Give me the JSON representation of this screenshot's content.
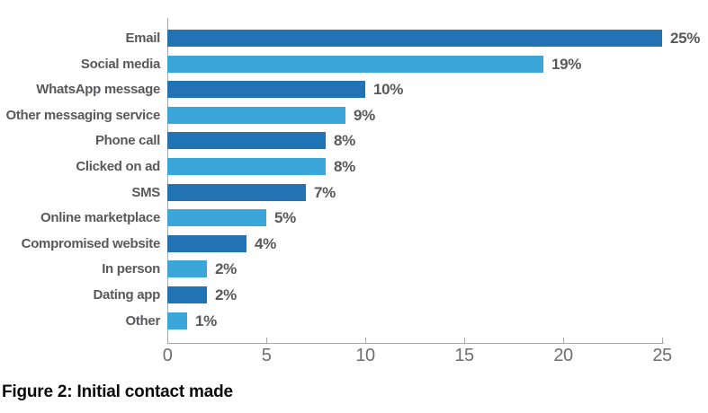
{
  "figure_caption": "Figure 2: Initial contact made",
  "colors": {
    "bar_dark": "#2273b4",
    "bar_light": "#3aa6da",
    "category_label": "#58595b",
    "value_label": "#58595b",
    "tick_label": "#6d6e71",
    "axis_line": "#a7a9ac",
    "caption": "#0c0c0c",
    "background": "#ffffff"
  },
  "chart_data": {
    "type": "bar",
    "orientation": "horizontal",
    "title": "",
    "xlabel": "",
    "ylabel": "",
    "categories": [
      "Email",
      "Social media",
      "WhatsApp message",
      "Other messaging service",
      "Phone call",
      "Clicked on ad",
      "SMS",
      "Online marketplace",
      "Compromised website",
      "In person",
      "Dating app",
      "Other"
    ],
    "values": [
      25,
      19,
      10,
      9,
      8,
      8,
      7,
      5,
      4,
      2,
      2,
      1
    ],
    "value_labels": [
      "25%",
      "19%",
      "10%",
      "9%",
      "8%",
      "8%",
      "7%",
      "5%",
      "4%",
      "2%",
      "2%",
      "1%"
    ],
    "xlim": [
      0,
      25
    ],
    "x_ticks": [
      0,
      5,
      10,
      15,
      20,
      25
    ],
    "grid": false,
    "legend": "none",
    "bar_color_pattern_alternating": [
      "#2273b4",
      "#3aa6da"
    ]
  }
}
